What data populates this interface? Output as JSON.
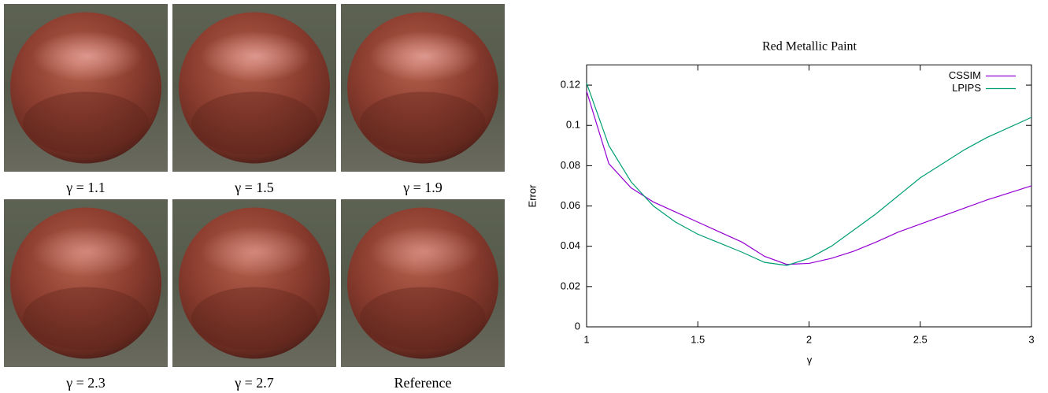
{
  "figure": {
    "captions": [
      "γ = 1.1",
      "γ = 1.5",
      "γ = 1.9",
      "γ = 2.3",
      "γ = 2.7",
      "Reference"
    ]
  },
  "chart_data": {
    "type": "line",
    "title": "Red Metallic Paint",
    "x_label": "γ",
    "y_label": "Error",
    "x": [
      1,
      1.1,
      1.2,
      1.3,
      1.4,
      1.5,
      1.6,
      1.7,
      1.8,
      1.9,
      2,
      2.1,
      2.2,
      2.3,
      2.4,
      2.5,
      2.6,
      2.7,
      2.8,
      2.9,
      3
    ],
    "series": [
      {
        "name": "CSSIM",
        "color": "#9400d3",
        "values": [
          0.117,
          0.081,
          0.069,
          0.062,
          0.057,
          0.052,
          0.047,
          0.042,
          0.035,
          0.031,
          0.0315,
          0.034,
          0.0375,
          0.042,
          0.047,
          0.051,
          0.055,
          0.059,
          0.063,
          0.0665,
          0.07
        ]
      },
      {
        "name": "LPIPS",
        "color": "#009e73",
        "values": [
          0.121,
          0.09,
          0.072,
          0.06,
          0.052,
          0.046,
          0.0415,
          0.037,
          0.032,
          0.0305,
          0.034,
          0.04,
          0.048,
          0.056,
          0.065,
          0.074,
          0.081,
          0.088,
          0.094,
          0.099,
          0.104
        ]
      }
    ],
    "xlim": [
      1,
      3
    ],
    "xticks": [
      1,
      1.5,
      2,
      2.5,
      3
    ],
    "ylim": [
      0,
      0.13
    ],
    "yticks": [
      0,
      0.02,
      0.04,
      0.06,
      0.08,
      0.1,
      0.12
    ],
    "legend": "top-right",
    "grid": false
  }
}
